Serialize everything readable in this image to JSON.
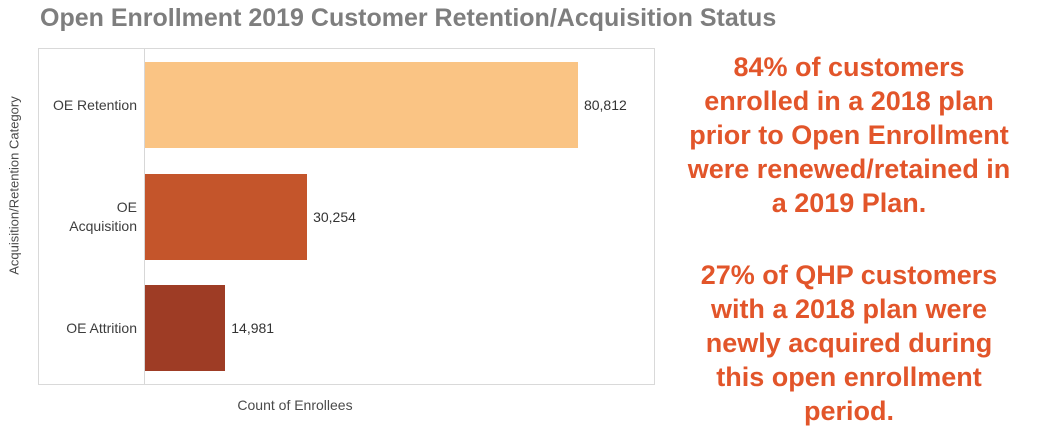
{
  "chart_data": {
    "type": "bar",
    "orientation": "horizontal",
    "title": "Open Enrollment 2019 Customer Retention/Acquisition Status",
    "categories": [
      "OE Retention",
      "OE Acquisition",
      "OE Attrition"
    ],
    "values": [
      80812,
      30254,
      14981
    ],
    "value_labels": [
      "80,812",
      "30,254",
      "14,981"
    ],
    "xlabel": "Count of Enrollees",
    "ylabel": "Acquisition/Retention Category",
    "xlim": [
      0,
      95000
    ],
    "bar_colors": [
      "#FAC484",
      "#C4552B",
      "#9E3C25"
    ],
    "grid": false,
    "legend": "none",
    "title_color": "#7E7E7E"
  },
  "annotations": {
    "text_color": "#E2552A",
    "retention_note": {
      "full_text": "84% of customers enrolled in a 2018 plan prior to Open Enrollment were renewed/retained in a 2019 Plan.",
      "lines": [
        "84% of customers",
        "enrolled in a 2018 plan",
        "prior to Open Enrollment",
        "were renewed/retained in",
        "a 2019 Plan."
      ]
    },
    "acquisition_note": {
      "full_text": "27% of QHP customers with a 2018 plan were newly acquired during this open enrollment period.",
      "lines": [
        "27% of QHP customers",
        "with a 2018 plan were",
        "newly acquired during",
        "this open enrollment",
        "period."
      ]
    }
  }
}
